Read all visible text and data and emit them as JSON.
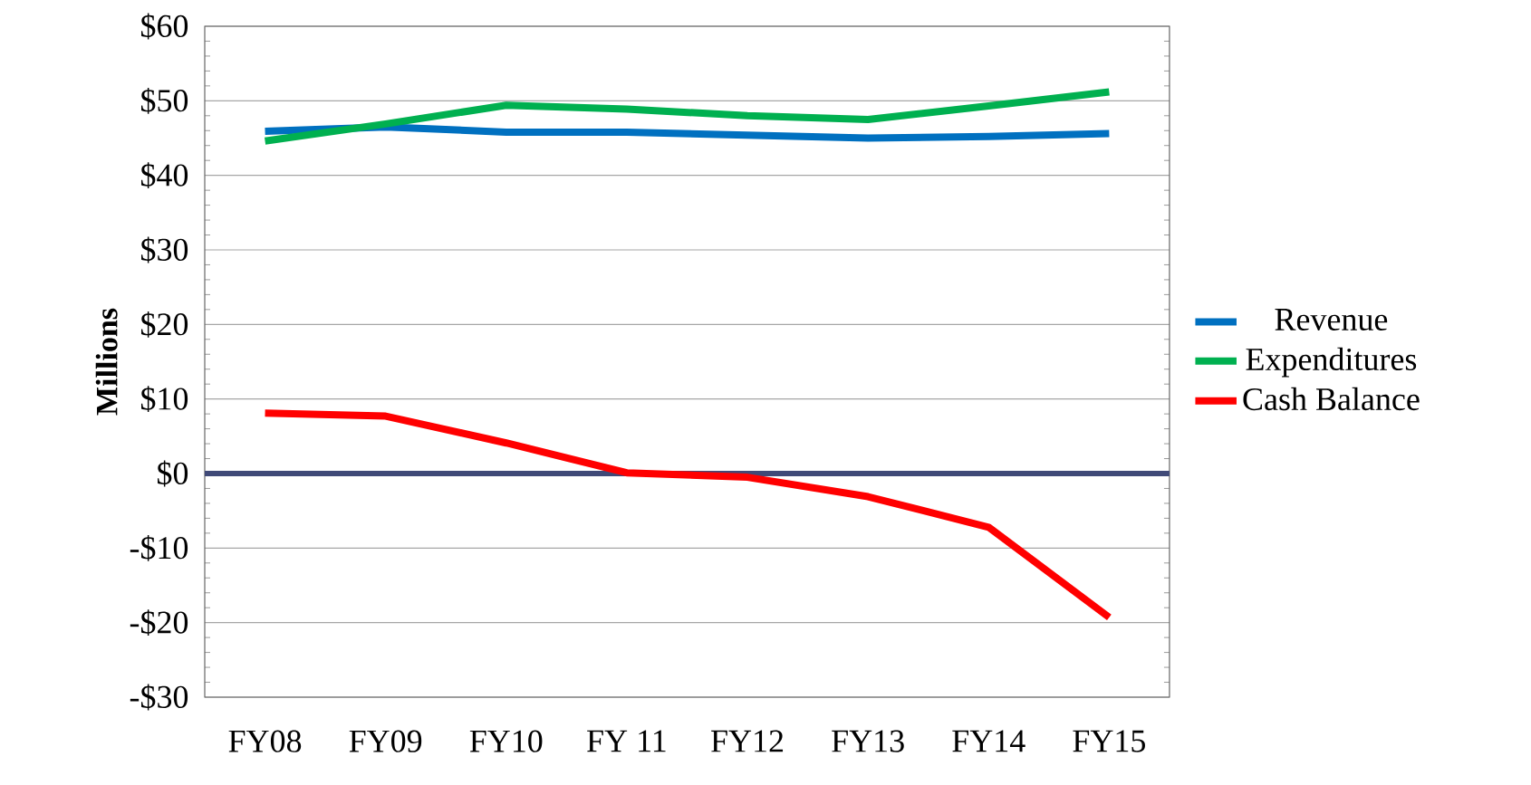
{
  "chart_data": {
    "type": "line",
    "ylabel": "Millions",
    "categories": [
      "FY08",
      "FY09",
      "FY10",
      "FY 11",
      "FY12",
      "FY13",
      "FY14",
      "FY15"
    ],
    "series": [
      {
        "name": "Revenue",
        "color": "#0070c0",
        "values": [
          45.9,
          46.5,
          45.8,
          45.8,
          45.4,
          45.0,
          45.2,
          45.6
        ]
      },
      {
        "name": "Expenditures",
        "color": "#00b050",
        "values": [
          44.6,
          46.9,
          49.4,
          48.9,
          48.0,
          47.5,
          49.3,
          51.2
        ]
      },
      {
        "name": "Cash Balance",
        "color": "#ff0000",
        "values": [
          8.1,
          7.7,
          4.1,
          0.1,
          -0.5,
          -3.1,
          -7.2,
          -19.3
        ]
      }
    ],
    "ylim": [
      -30,
      60
    ],
    "yticks": [
      {
        "value": -30,
        "label": "-$30"
      },
      {
        "value": -20,
        "label": "-$20"
      },
      {
        "value": -10,
        "label": "-$10"
      },
      {
        "value": 0,
        "label": "$0"
      },
      {
        "value": 10,
        "label": "$10"
      },
      {
        "value": 20,
        "label": "$20"
      },
      {
        "value": 30,
        "label": "$30"
      },
      {
        "value": 40,
        "label": "$40"
      },
      {
        "value": 50,
        "label": "$50"
      },
      {
        "value": 60,
        "label": "$60"
      }
    ],
    "ref_lines": [
      {
        "axis": "y",
        "value": 0,
        "color": "#404a78"
      }
    ],
    "grid": "y",
    "legend": "right",
    "marker": "none",
    "line_style": "solid"
  }
}
